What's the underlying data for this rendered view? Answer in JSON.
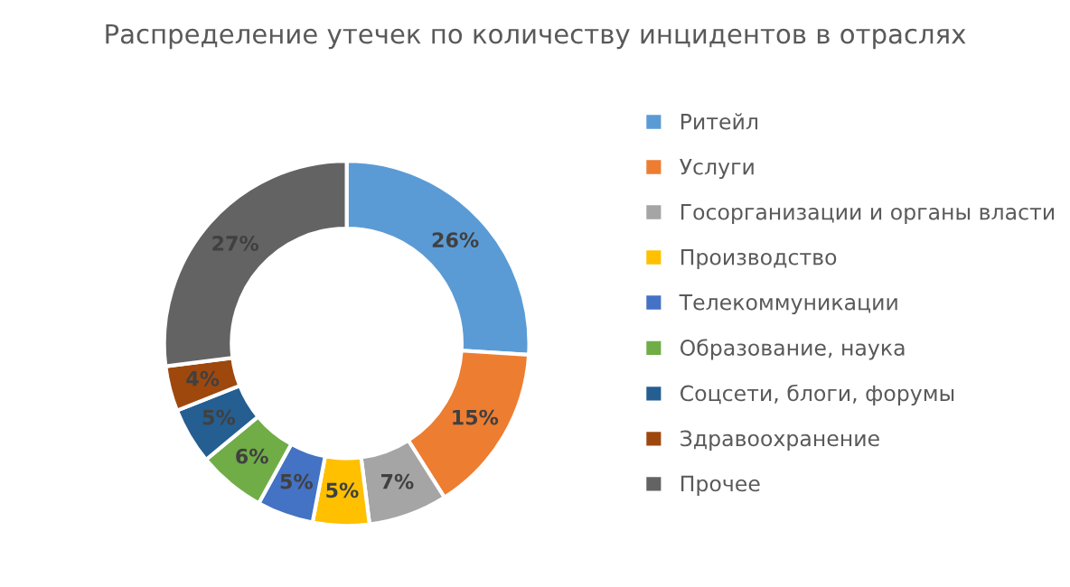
{
  "chart_data": {
    "type": "donut",
    "title": "Распределение утечек по количеству инцидентов в отраслях",
    "categories": [
      "Ритейл",
      "Услуги",
      "Госорганизации и органы власти",
      "Производство",
      "Телекоммуникации",
      "Образование, наука",
      "Соцсети, блоги, форумы",
      "Здравоохранение",
      "Прочее"
    ],
    "values": [
      26,
      15,
      7,
      5,
      5,
      6,
      5,
      4,
      27
    ],
    "value_labels": [
      "26%",
      "15%",
      "7%",
      "5%",
      "5%",
      "6%",
      "5%",
      "4%",
      "27%"
    ],
    "colors": [
      "#5b9bd5",
      "#ed7d31",
      "#a5a5a5",
      "#ffc000",
      "#4472c4",
      "#70ad47",
      "#255e91",
      "#9e480e",
      "#636363"
    ],
    "legend": "right"
  }
}
